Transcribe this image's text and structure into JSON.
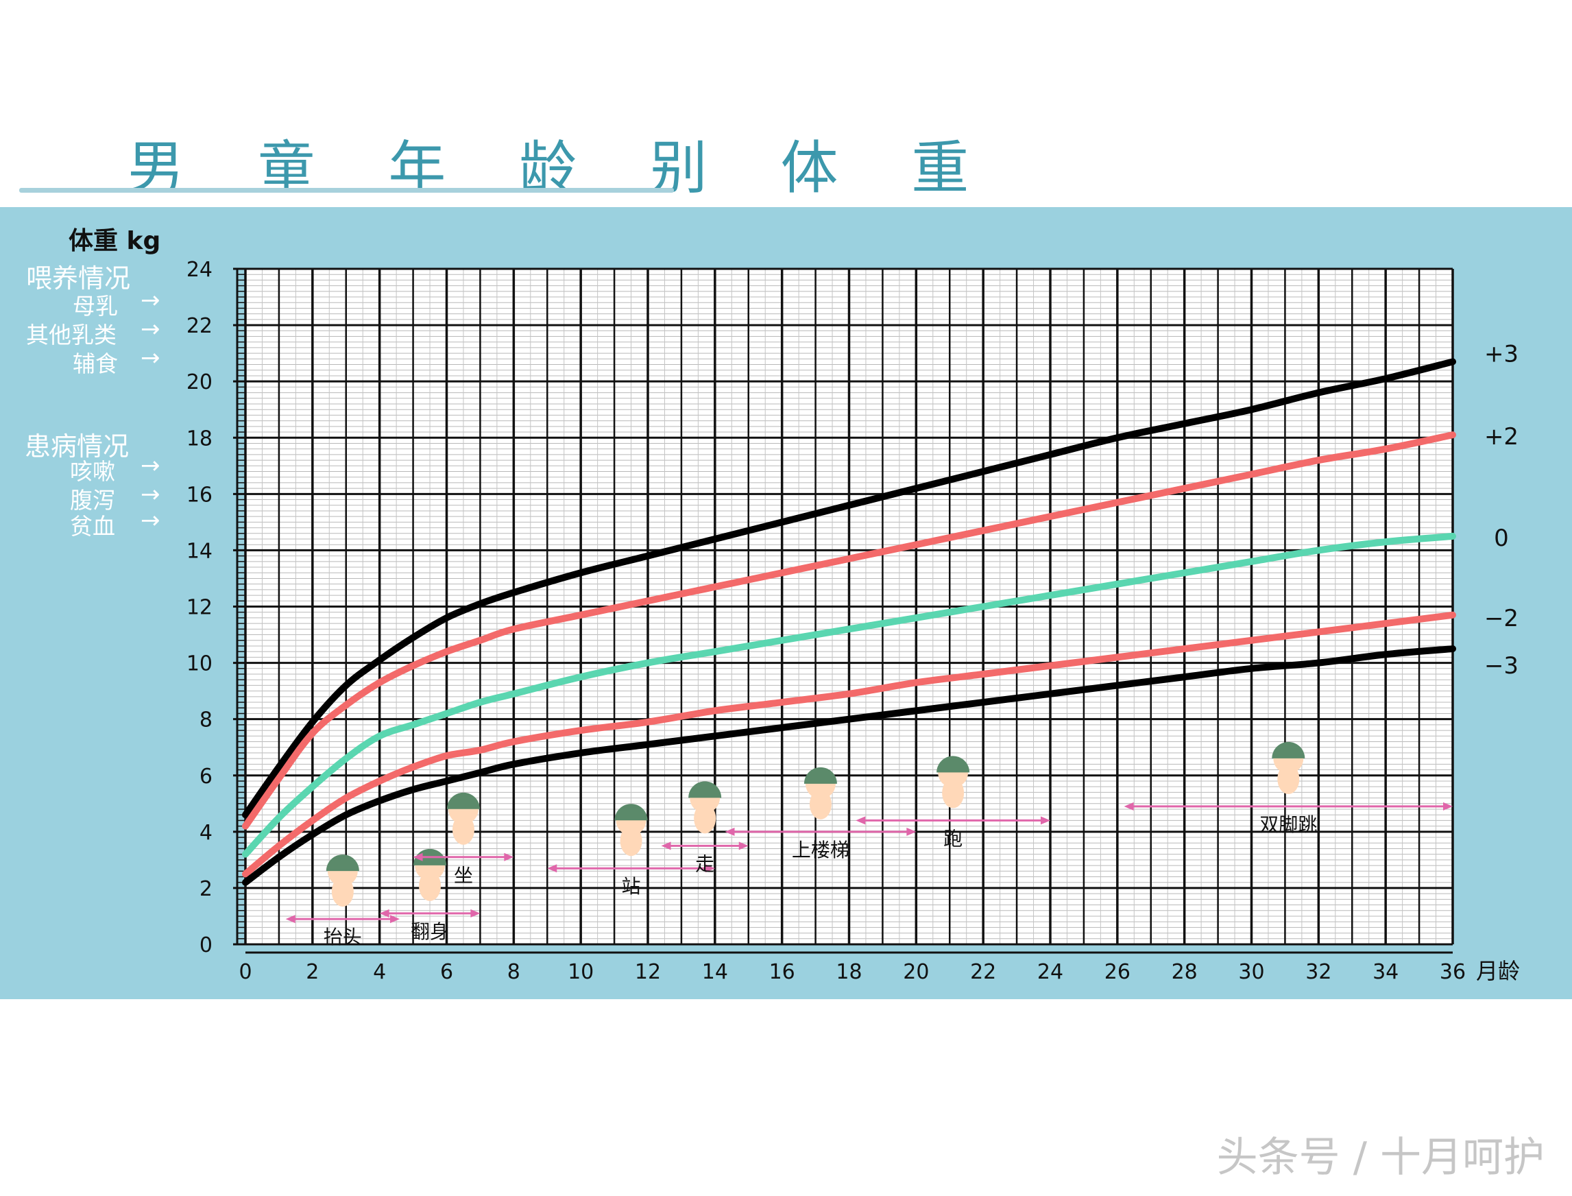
{
  "page": {
    "title": "男 童 年 龄 别 体 重",
    "watermark": "头条号 / 十月呵护",
    "colors": {
      "title": "#3c98ac",
      "band": "#9bd1df",
      "black_curve": "#000000",
      "red_curve": "#f36a6a",
      "green_curve": "#5ad6b0",
      "milestone_arrow": "#e066aa"
    }
  },
  "side_panel": {
    "weight_unit_label": "体重 kg",
    "feeding_heading": "喂养情况",
    "feeding_items": [
      "母乳",
      "其他乳类",
      "辅食"
    ],
    "illness_heading": "患病情况",
    "illness_items": [
      "咳嗽",
      "腹泻",
      "贫血"
    ],
    "arrow_glyph": "→"
  },
  "chart_data": {
    "type": "line",
    "title": "男 童 年 龄 别 体 重",
    "xlabel": "月龄",
    "ylabel": "体重 kg",
    "xlim": [
      0,
      36
    ],
    "ylim": [
      0,
      24
    ],
    "x_ticks": [
      0,
      2,
      4,
      6,
      8,
      10,
      12,
      14,
      16,
      18,
      20,
      22,
      24,
      26,
      28,
      30,
      32,
      34,
      36
    ],
    "y_ticks": [
      0,
      2,
      4,
      6,
      8,
      10,
      12,
      14,
      16,
      18,
      20,
      22,
      24
    ],
    "grid": true,
    "x": [
      0,
      1,
      2,
      3,
      4,
      5,
      6,
      7,
      8,
      10,
      12,
      14,
      16,
      18,
      20,
      22,
      24,
      26,
      28,
      30,
      32,
      34,
      36
    ],
    "series": [
      {
        "name": "+3",
        "color": "#000000",
        "values": [
          4.6,
          6.3,
          7.9,
          9.2,
          10.1,
          10.9,
          11.6,
          12.1,
          12.5,
          13.2,
          13.8,
          14.4,
          15.0,
          15.6,
          16.2,
          16.8,
          17.4,
          18.0,
          18.5,
          19.0,
          19.6,
          20.1,
          20.7
        ]
      },
      {
        "name": "+2",
        "color": "#f36a6a",
        "values": [
          4.2,
          5.9,
          7.5,
          8.5,
          9.3,
          9.9,
          10.4,
          10.8,
          11.2,
          11.7,
          12.2,
          12.7,
          13.2,
          13.7,
          14.2,
          14.7,
          15.2,
          15.7,
          16.2,
          16.7,
          17.2,
          17.6,
          18.1
        ]
      },
      {
        "name": "0",
        "color": "#5ad6b0",
        "values": [
          3.2,
          4.5,
          5.6,
          6.6,
          7.4,
          7.8,
          8.2,
          8.6,
          8.9,
          9.5,
          10.0,
          10.4,
          10.8,
          11.2,
          11.6,
          12.0,
          12.4,
          12.8,
          13.2,
          13.6,
          14.0,
          14.3,
          14.5
        ]
      },
      {
        "name": "−2",
        "color": "#f36a6a",
        "values": [
          2.5,
          3.5,
          4.4,
          5.2,
          5.8,
          6.3,
          6.7,
          6.9,
          7.2,
          7.6,
          7.9,
          8.3,
          8.6,
          8.9,
          9.3,
          9.6,
          9.9,
          10.2,
          10.5,
          10.8,
          11.1,
          11.4,
          11.7
        ]
      },
      {
        "name": "−3",
        "color": "#000000",
        "values": [
          2.2,
          3.1,
          3.9,
          4.6,
          5.1,
          5.5,
          5.8,
          6.1,
          6.4,
          6.8,
          7.1,
          7.4,
          7.7,
          8.0,
          8.3,
          8.6,
          8.9,
          9.2,
          9.5,
          9.8,
          10.0,
          10.3,
          10.5
        ]
      }
    ],
    "milestones": [
      {
        "label": "抬头",
        "from": 1.2,
        "to": 4.6,
        "y": 0.9
      },
      {
        "label": "翻身",
        "from": 4.0,
        "to": 7.0,
        "y": 1.1
      },
      {
        "label": "坐",
        "from": 5.0,
        "to": 8.0,
        "y": 3.1
      },
      {
        "label": "站",
        "from": 9.0,
        "to": 14.0,
        "y": 2.7
      },
      {
        "label": "走",
        "from": 12.4,
        "to": 15.0,
        "y": 3.5
      },
      {
        "label": "上楼梯",
        "from": 14.3,
        "to": 20.0,
        "y": 4.0
      },
      {
        "label": "跑",
        "from": 18.2,
        "to": 24.0,
        "y": 4.4
      },
      {
        "label": "双脚跳",
        "from": 26.2,
        "to": 36.0,
        "y": 4.9
      }
    ]
  }
}
